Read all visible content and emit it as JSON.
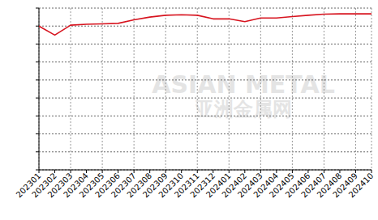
{
  "chart_data": {
    "type": "line",
    "categories": [
      "202301",
      "202302",
      "202303",
      "202304",
      "202305",
      "202306",
      "202307",
      "202308",
      "202309",
      "202310",
      "202311",
      "202312",
      "202401",
      "202402",
      "202403",
      "202404",
      "202405",
      "202406",
      "202407",
      "202408",
      "202409",
      "202410"
    ],
    "values": [
      8.0,
      7.5,
      8.05,
      8.1,
      8.12,
      8.15,
      8.35,
      8.5,
      8.6,
      8.63,
      8.6,
      8.4,
      8.4,
      8.25,
      8.45,
      8.45,
      8.53,
      8.6,
      8.66,
      8.68,
      8.68,
      8.68
    ],
    "color": "#d7141f",
    "ylim": [
      0,
      9
    ],
    "yticks": [
      0,
      1,
      2,
      3,
      4,
      5,
      6,
      7,
      8,
      9
    ],
    "grid": true,
    "tick_labels": "x",
    "annotations": [
      "ASIAN METAL",
      "亚洲金属网"
    ]
  }
}
